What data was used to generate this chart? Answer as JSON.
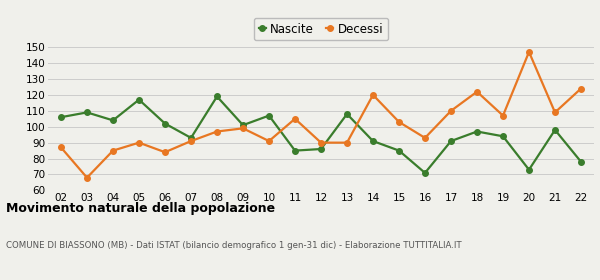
{
  "years": [
    "02",
    "03",
    "04",
    "05",
    "06",
    "07",
    "08",
    "09",
    "10",
    "11",
    "12",
    "13",
    "14",
    "15",
    "16",
    "17",
    "18",
    "19",
    "20",
    "21",
    "22"
  ],
  "nascite": [
    106,
    109,
    104,
    117,
    102,
    93,
    119,
    101,
    107,
    85,
    86,
    108,
    91,
    85,
    71,
    91,
    97,
    94,
    73,
    98,
    78
  ],
  "decessi": [
    87,
    68,
    85,
    90,
    84,
    91,
    97,
    99,
    91,
    105,
    90,
    90,
    120,
    103,
    93,
    110,
    122,
    107,
    147,
    109,
    124
  ],
  "nascite_color": "#3a7d2c",
  "decessi_color": "#e87722",
  "background_color": "#f0f0eb",
  "grid_color": "#cccccc",
  "ylim": [
    60,
    155
  ],
  "yticks": [
    60,
    70,
    80,
    90,
    100,
    110,
    120,
    130,
    140,
    150
  ],
  "title": "Movimento naturale della popolazione",
  "subtitle": "COMUNE DI BIASSONO (MB) - Dati ISTAT (bilancio demografico 1 gen-31 dic) - Elaborazione TUTTITALIA.IT",
  "legend_nascite": "Nascite",
  "legend_decessi": "Decessi",
  "marker_size": 4,
  "line_width": 1.6
}
